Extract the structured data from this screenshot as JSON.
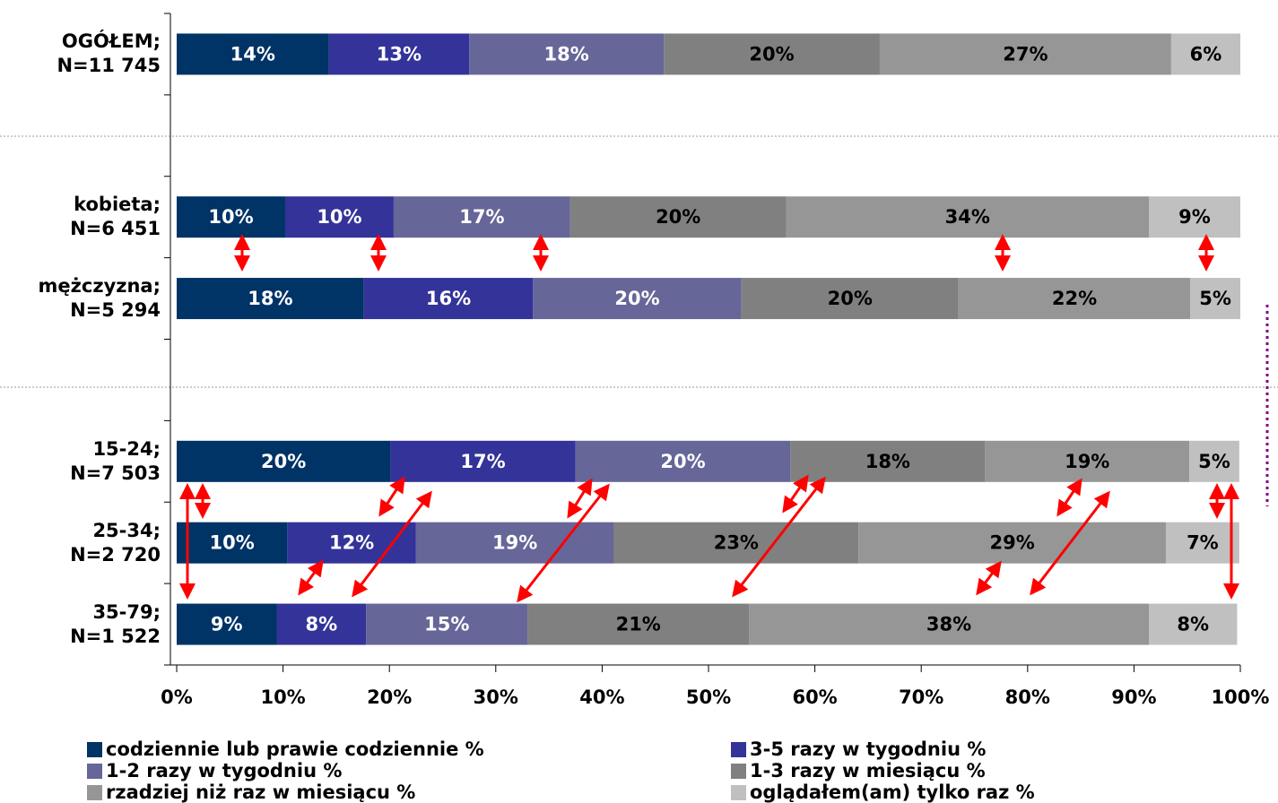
{
  "chart_data": {
    "type": "stacked-bar",
    "categories": [
      "OGÓŁEM;\nN=11 745",
      null,
      "kobieta;\nN=6 451",
      "mężczyzna;\nN=5 294",
      null,
      "15-24;\nN=7 503",
      "25-34;\nN=2 720",
      "35-79;\nN=1 522"
    ],
    "series": [
      {
        "name": "codziennie lub prawie codziennie %",
        "color": "#003366",
        "label_color": "#ffffff",
        "values": [
          14.3,
          null,
          10.2,
          17.6,
          null,
          20.1,
          10.4,
          9.4
        ],
        "value_labels": [
          "14%",
          null,
          "10%",
          "18%",
          null,
          "20%",
          "10%",
          "9%"
        ]
      },
      {
        "name": "3-5 razy w tygodniu %",
        "color": "#333399",
        "label_color": "#ffffff",
        "values": [
          13.2,
          null,
          10.2,
          15.9,
          null,
          17.4,
          12.1,
          8.4
        ],
        "value_labels": [
          "13%",
          null,
          "10%",
          "16%",
          null,
          "17%",
          "12%",
          "8%"
        ]
      },
      {
        "name": "1-2 razy w tygodniu %",
        "color": "#666699",
        "label_color": "#ffffff",
        "values": [
          18.3,
          null,
          16.6,
          19.6,
          null,
          20.2,
          18.6,
          15.2
        ],
        "value_labels": [
          "18%",
          null,
          "17%",
          "20%",
          null,
          "20%",
          "19%",
          "15%"
        ]
      },
      {
        "name": "1-3 razy w miesiącu %",
        "color": "#808080",
        "label_color": "#000000",
        "values": [
          20.3,
          null,
          20.3,
          20.4,
          null,
          18.3,
          23.0,
          20.8
        ],
        "value_labels": [
          "20%",
          null,
          "20%",
          "20%",
          null,
          "18%",
          "23%",
          "21%"
        ]
      },
      {
        "name": "rzadziej niż raz w miesiącu %",
        "color": "#969696",
        "label_color": "#000000",
        "values": [
          27.4,
          null,
          34.1,
          21.8,
          null,
          19.2,
          28.9,
          37.6
        ],
        "value_labels": [
          "27%",
          null,
          "34%",
          "22%",
          null,
          "19%",
          "29%",
          "38%"
        ]
      },
      {
        "name": "oglądałem(am) tylko raz %",
        "color": "#c0c0c0",
        "label_color": "#000000",
        "values": [
          6.5,
          null,
          8.6,
          4.7,
          null,
          4.7,
          6.9,
          8.3
        ],
        "value_labels": [
          "6%",
          null,
          "9%",
          "5%",
          null,
          "5%",
          "7%",
          "8%"
        ]
      }
    ],
    "xlim": [
      0,
      100
    ],
    "xticks": [
      {
        "value": 0,
        "label": "0%"
      },
      {
        "value": 10,
        "label": "10%"
      },
      {
        "value": 20,
        "label": "20%"
      },
      {
        "value": 30,
        "label": "30%"
      },
      {
        "value": 40,
        "label": "40%"
      },
      {
        "value": 50,
        "label": "50%"
      },
      {
        "value": 60,
        "label": "60%"
      },
      {
        "value": 70,
        "label": "70%"
      },
      {
        "value": 80,
        "label": "80%"
      },
      {
        "value": 90,
        "label": "90%"
      },
      {
        "value": 100,
        "label": "100%"
      }
    ]
  }
}
